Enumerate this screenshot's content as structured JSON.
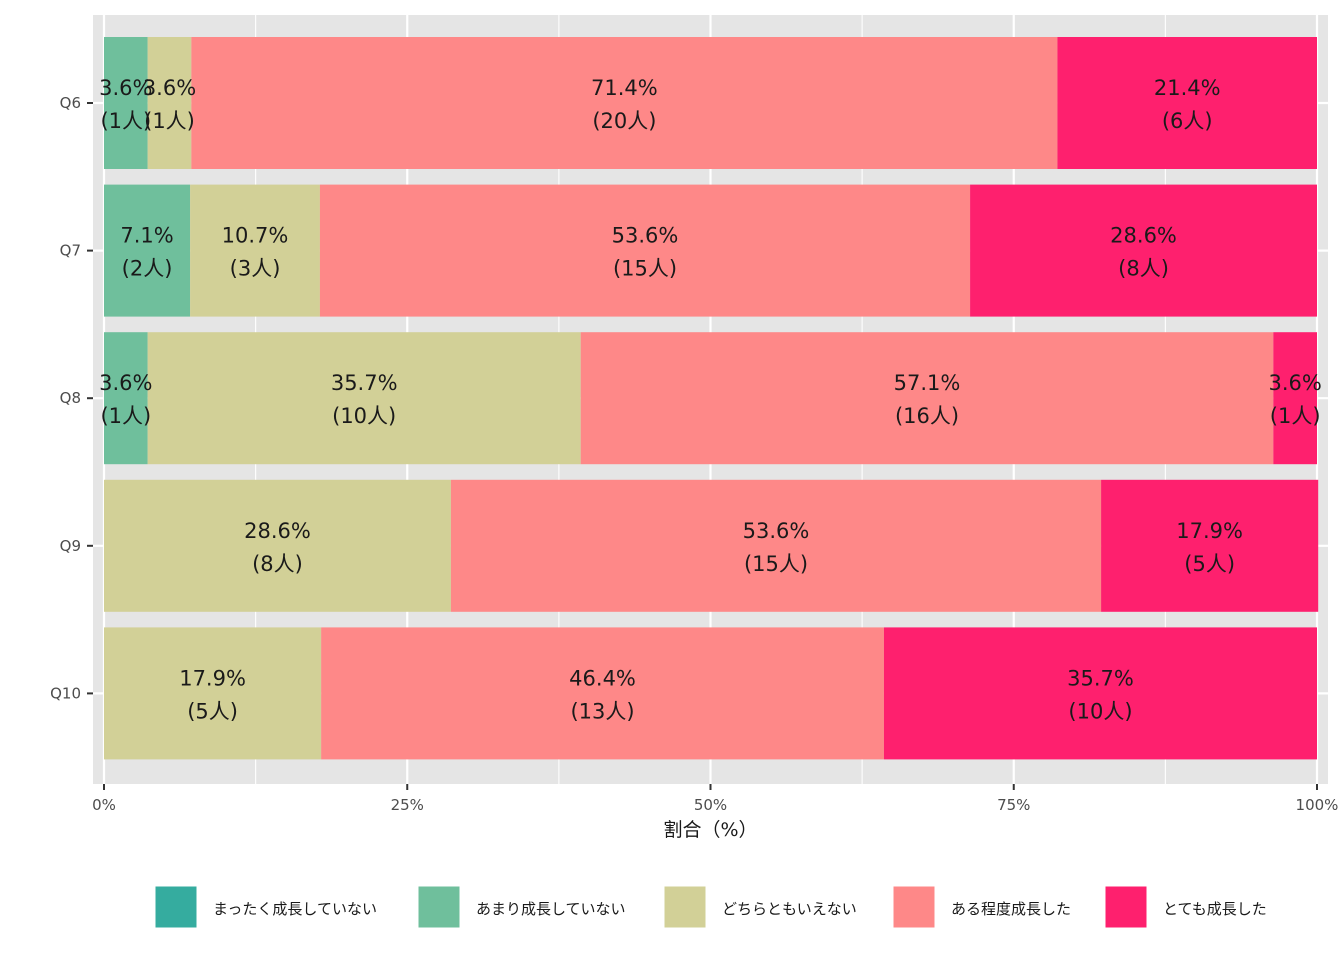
{
  "chart_data": {
    "type": "bar",
    "orientation": "horizontal",
    "stacked": "percent",
    "title": "",
    "xlabel": "割合（%）",
    "ylabel": "",
    "xlim": [
      0,
      100
    ],
    "x_ticks": [
      0,
      25,
      50,
      75,
      100
    ],
    "x_tick_labels": [
      "0%",
      "25%",
      "50%",
      "75%",
      "100%"
    ],
    "categories": [
      "Q6",
      "Q7",
      "Q8",
      "Q9",
      "Q10"
    ],
    "series": [
      {
        "name": "まったく成長していない",
        "color": "#35ac9f",
        "percents": [
          0,
          0,
          0,
          0,
          0
        ],
        "counts": [
          0,
          0,
          0,
          0,
          0
        ]
      },
      {
        "name": "あまり成長していない",
        "color": "#6fbf9c",
        "percents": [
          3.6,
          7.1,
          3.6,
          0,
          0
        ],
        "counts": [
          1,
          2,
          1,
          0,
          0
        ]
      },
      {
        "name": "どちらともいえない",
        "color": "#d2d097",
        "percents": [
          3.6,
          10.7,
          35.7,
          28.6,
          17.9
        ],
        "counts": [
          1,
          3,
          10,
          8,
          5
        ]
      },
      {
        "name": "ある程度成長した",
        "color": "#fe8888",
        "percents": [
          71.4,
          53.6,
          57.1,
          53.6,
          46.4
        ],
        "counts": [
          20,
          15,
          16,
          15,
          13
        ]
      },
      {
        "name": "とても成長した",
        "color": "#fe206e",
        "percents": [
          21.4,
          28.6,
          3.6,
          17.9,
          35.7
        ],
        "counts": [
          6,
          8,
          1,
          5,
          10
        ]
      }
    ],
    "label_format": {
      "percent_suffix": "%",
      "count_prefix": "(",
      "count_suffix": "人)"
    },
    "grid": true,
    "panel_background": "#e5e5e5",
    "grid_color": "#ffffff",
    "legend_position": "bottom"
  }
}
